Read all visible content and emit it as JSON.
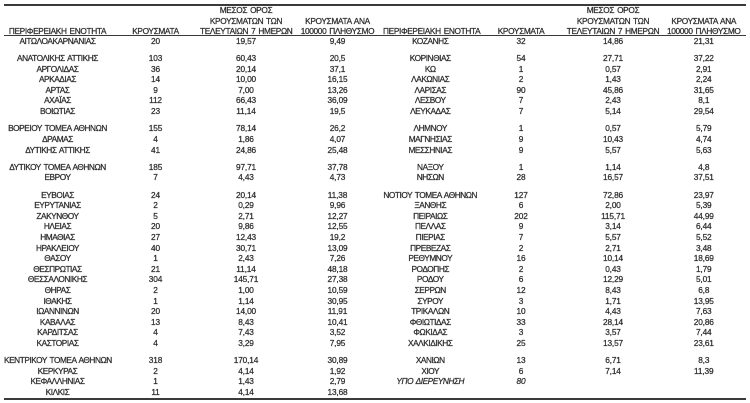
{
  "page": {
    "background": "#ffffff",
    "text_color": "#2e2e2e",
    "rule_color": "#3a3a3a"
  },
  "table": {
    "header": {
      "region": "ΠΕΡΙΦΕΡΕΙΑΚΗ ΕΝΟΤΗΤΑ",
      "cases": "ΚΡΟΥΣΜΑΤΑ",
      "avg7_lines": [
        "ΜΕΣΟΣ ΟΡΟΣ",
        "ΚΡΟΥΣΜΑΤΩΝ ΤΩΝ",
        "ΤΕΛΕΥΤΑΙΩΝ 7 ΗΜΕΡΩΝ"
      ],
      "per100k_lines": [
        "ΚΡΟΥΣΜΑΤΑ ΑΝΑ",
        "100000 ΠΛΗΘΥΣΜΟ"
      ]
    },
    "rows": [
      {
        "type": "data",
        "left": {
          "region": "ΑΙΤΩΛΟΑΚΑΡΝΑΝΙΑΣ",
          "cases": "20",
          "avg7": "19,57",
          "per100k": "9,49"
        },
        "right": {
          "region": "ΚΟΖΑΝΗΣ",
          "cases": "32",
          "avg7": "14,86",
          "per100k": "21,31"
        }
      },
      {
        "type": "spacer"
      },
      {
        "type": "data",
        "left": {
          "region": "ΑΝΑΤΟΛΙΚΗΣ ΑΤΤΙΚΗΣ",
          "cases": "103",
          "avg7": "60,43",
          "per100k": "20,5"
        },
        "right": {
          "region": "ΚΟΡΙΝΘΙΑΣ",
          "cases": "54",
          "avg7": "27,71",
          "per100k": "37,22"
        }
      },
      {
        "type": "data",
        "left": {
          "region": "ΑΡΓΟΛΙΔΑΣ",
          "cases": "36",
          "avg7": "20,14",
          "per100k": "37,1"
        },
        "right": {
          "region": "ΚΩ",
          "cases": "1",
          "avg7": "0,57",
          "per100k": "2,91"
        }
      },
      {
        "type": "data",
        "left": {
          "region": "ΑΡΚΑΔΙΑΣ",
          "cases": "14",
          "avg7": "10,00",
          "per100k": "16,15"
        },
        "right": {
          "region": "ΛΑΚΩΝΙΑΣ",
          "cases": "2",
          "avg7": "1,43",
          "per100k": "2,24"
        }
      },
      {
        "type": "data",
        "left": {
          "region": "ΑΡΤΑΣ",
          "cases": "9",
          "avg7": "7,00",
          "per100k": "13,26"
        },
        "right": {
          "region": "ΛΑΡΙΣΑΣ",
          "cases": "90",
          "avg7": "45,86",
          "per100k": "31,65"
        }
      },
      {
        "type": "data",
        "left": {
          "region": "ΑΧΑΪΑΣ",
          "cases": "112",
          "avg7": "66,43",
          "per100k": "36,09"
        },
        "right": {
          "region": "ΛΕΣΒΟΥ",
          "cases": "7",
          "avg7": "2,43",
          "per100k": "8,1"
        }
      },
      {
        "type": "data",
        "left": {
          "region": "ΒΟΙΩΤΙΑΣ",
          "cases": "23",
          "avg7": "11,14",
          "per100k": "19,5"
        },
        "right": {
          "region": "ΛΕΥΚΑΔΑΣ",
          "cases": "7",
          "avg7": "5,14",
          "per100k": "29,54"
        }
      },
      {
        "type": "spacer"
      },
      {
        "type": "data",
        "left": {
          "region": "ΒΟΡΕΙΟΥ ΤΟΜΕΑ ΑΘΗΝΩΝ",
          "cases": "155",
          "avg7": "78,14",
          "per100k": "26,2"
        },
        "right": {
          "region": "ΛΗΜΝΟΥ",
          "cases": "1",
          "avg7": "0,57",
          "per100k": "5,79"
        }
      },
      {
        "type": "data",
        "left": {
          "region": "ΔΡΑΜΑΣ",
          "cases": "4",
          "avg7": "1,86",
          "per100k": "4,07"
        },
        "right": {
          "region": "ΜΑΓΝΗΣΙΑΣ",
          "cases": "9",
          "avg7": "10,43",
          "per100k": "4,74"
        }
      },
      {
        "type": "data",
        "left": {
          "region": "ΔΥΤΙΚΗΣ ΑΤΤΙΚΗΣ",
          "cases": "41",
          "avg7": "24,86",
          "per100k": "25,48"
        },
        "right": {
          "region": "ΜΕΣΣΗΝΙΑΣ",
          "cases": "9",
          "avg7": "5,57",
          "per100k": "5,63"
        }
      },
      {
        "type": "spacer"
      },
      {
        "type": "data",
        "left": {
          "region": "ΔΥΤΙΚΟΥ ΤΟΜΕΑ ΑΘΗΝΩΝ",
          "cases": "185",
          "avg7": "97,71",
          "per100k": "37,78"
        },
        "right": {
          "region": "ΝΑΞΟΥ",
          "cases": "1",
          "avg7": "1,14",
          "per100k": "4,8"
        }
      },
      {
        "type": "data",
        "left": {
          "region": "ΕΒΡΟΥ",
          "cases": "7",
          "avg7": "4,43",
          "per100k": "4,73"
        },
        "right": {
          "region": "ΝΗΣΩΝ",
          "cases": "28",
          "avg7": "16,57",
          "per100k": "37,51"
        }
      },
      {
        "type": "spacer"
      },
      {
        "type": "data",
        "left": {
          "region": "ΕΥΒΟΙΑΣ",
          "cases": "24",
          "avg7": "20,14",
          "per100k": "11,38"
        },
        "right": {
          "region": "ΝΟΤΙΟΥ ΤΟΜΕΑ ΑΘΗΝΩΝ",
          "cases": "127",
          "avg7": "72,86",
          "per100k": "23,97"
        }
      },
      {
        "type": "data",
        "left": {
          "region": "ΕΥΡΥΤΑΝΙΑΣ",
          "cases": "2",
          "avg7": "0,29",
          "per100k": "9,96"
        },
        "right": {
          "region": "ΞΑΝΘΗΣ",
          "cases": "6",
          "avg7": "2,00",
          "per100k": "5,39"
        }
      },
      {
        "type": "data",
        "left": {
          "region": "ΖΑΚΥΝΘΟΥ",
          "cases": "5",
          "avg7": "2,71",
          "per100k": "12,27"
        },
        "right": {
          "region": "ΠΕΙΡΑΙΩΣ",
          "cases": "202",
          "avg7": "115,71",
          "per100k": "44,99"
        }
      },
      {
        "type": "data",
        "left": {
          "region": "ΗΛΕΙΑΣ",
          "cases": "20",
          "avg7": "9,86",
          "per100k": "12,55"
        },
        "right": {
          "region": "ΠΕΛΛΑΣ",
          "cases": "9",
          "avg7": "3,14",
          "per100k": "6,44"
        }
      },
      {
        "type": "data",
        "left": {
          "region": "ΗΜΑΘΙΑΣ",
          "cases": "27",
          "avg7": "12,43",
          "per100k": "19,2"
        },
        "right": {
          "region": "ΠΙΕΡΙΑΣ",
          "cases": "7",
          "avg7": "5,57",
          "per100k": "5,52"
        }
      },
      {
        "type": "data",
        "left": {
          "region": "ΗΡΑΚΛΕΙΟΥ",
          "cases": "40",
          "avg7": "30,71",
          "per100k": "13,09"
        },
        "right": {
          "region": "ΠΡΕΒΕΖΑΣ",
          "cases": "2",
          "avg7": "2,71",
          "per100k": "3,48"
        }
      },
      {
        "type": "data",
        "left": {
          "region": "ΘΑΣΟΥ",
          "cases": "1",
          "avg7": "2,43",
          "per100k": "7,26"
        },
        "right": {
          "region": "ΡΕΘΥΜΝΟΥ",
          "cases": "16",
          "avg7": "10,14",
          "per100k": "18,69"
        }
      },
      {
        "type": "data",
        "left": {
          "region": "ΘΕΣΠΡΩΤΙΑΣ",
          "cases": "21",
          "avg7": "11,14",
          "per100k": "48,18"
        },
        "right": {
          "region": "ΡΟΔΟΠΗΣ",
          "cases": "2",
          "avg7": "0,43",
          "per100k": "1,79"
        }
      },
      {
        "type": "data",
        "left": {
          "region": "ΘΕΣΣΑΛΟΝΙΚΗΣ",
          "cases": "304",
          "avg7": "145,71",
          "per100k": "27,38"
        },
        "right": {
          "region": "ΡΟΔΟΥ",
          "cases": "6",
          "avg7": "12,29",
          "per100k": "5,01"
        }
      },
      {
        "type": "data",
        "left": {
          "region": "ΘΗΡΑΣ",
          "cases": "2",
          "avg7": "1,00",
          "per100k": "10,59"
        },
        "right": {
          "region": "ΣΕΡΡΩΝ",
          "cases": "12",
          "avg7": "8,43",
          "per100k": "6,8"
        }
      },
      {
        "type": "data",
        "left": {
          "region": "ΙΘΑΚΗΣ",
          "cases": "1",
          "avg7": "1,14",
          "per100k": "30,95"
        },
        "right": {
          "region": "ΣΥΡΟΥ",
          "cases": "3",
          "avg7": "1,71",
          "per100k": "13,95"
        }
      },
      {
        "type": "data",
        "left": {
          "region": "ΙΩΑΝΝΙΝΩΝ",
          "cases": "20",
          "avg7": "14,00",
          "per100k": "11,91"
        },
        "right": {
          "region": "ΤΡΙΚΑΛΩΝ",
          "cases": "10",
          "avg7": "4,43",
          "per100k": "7,63"
        }
      },
      {
        "type": "data",
        "left": {
          "region": "ΚΑΒΑΛΑΣ",
          "cases": "13",
          "avg7": "8,43",
          "per100k": "10,41"
        },
        "right": {
          "region": "ΦΘΙΩΤΙΔΑΣ",
          "cases": "33",
          "avg7": "28,14",
          "per100k": "20,86"
        }
      },
      {
        "type": "data",
        "left": {
          "region": "ΚΑΡΔΙΤΣΑΣ",
          "cases": "4",
          "avg7": "7,43",
          "per100k": "3,52"
        },
        "right": {
          "region": "ΦΩΚΙΔΑΣ",
          "cases": "3",
          "avg7": "3,57",
          "per100k": "7,44"
        }
      },
      {
        "type": "data",
        "left": {
          "region": "ΚΑΣΤΟΡΙΑΣ",
          "cases": "4",
          "avg7": "3,29",
          "per100k": "7,95"
        },
        "right": {
          "region": "ΧΑΛΚΙΔΙΚΗΣ",
          "cases": "25",
          "avg7": "13,57",
          "per100k": "23,61"
        }
      },
      {
        "type": "spacer"
      },
      {
        "type": "data",
        "left": {
          "region": "ΚΕΝΤΡΙΚΟΥ ΤΟΜΕΑ ΑΘΗΝΩΝ",
          "cases": "318",
          "avg7": "170,14",
          "per100k": "30,89"
        },
        "right": {
          "region": "ΧΑΝΙΩΝ",
          "cases": "13",
          "avg7": "6,71",
          "per100k": "8,3"
        }
      },
      {
        "type": "data",
        "left": {
          "region": "ΚΕΡΚΥΡΑΣ",
          "cases": "2",
          "avg7": "4,14",
          "per100k": "1,92"
        },
        "right": {
          "region": "ΧΙΟΥ",
          "cases": "6",
          "avg7": "7,14",
          "per100k": "11,39"
        }
      },
      {
        "type": "data",
        "left": {
          "region": "ΚΕΦΑΛΛΗΝΙΑΣ",
          "cases": "1",
          "avg7": "1,43",
          "per100k": "2,79"
        },
        "right": {
          "region": "ΥΠΟ ΔΙΕΡΕΥΝΗΣΗ",
          "cases": "80",
          "avg7": "",
          "per100k": "",
          "italic": true
        }
      },
      {
        "type": "data",
        "left": {
          "region": "ΚΙΛΚΙΣ",
          "cases": "11",
          "avg7": "4,14",
          "per100k": "13,68"
        },
        "right": null
      }
    ]
  }
}
